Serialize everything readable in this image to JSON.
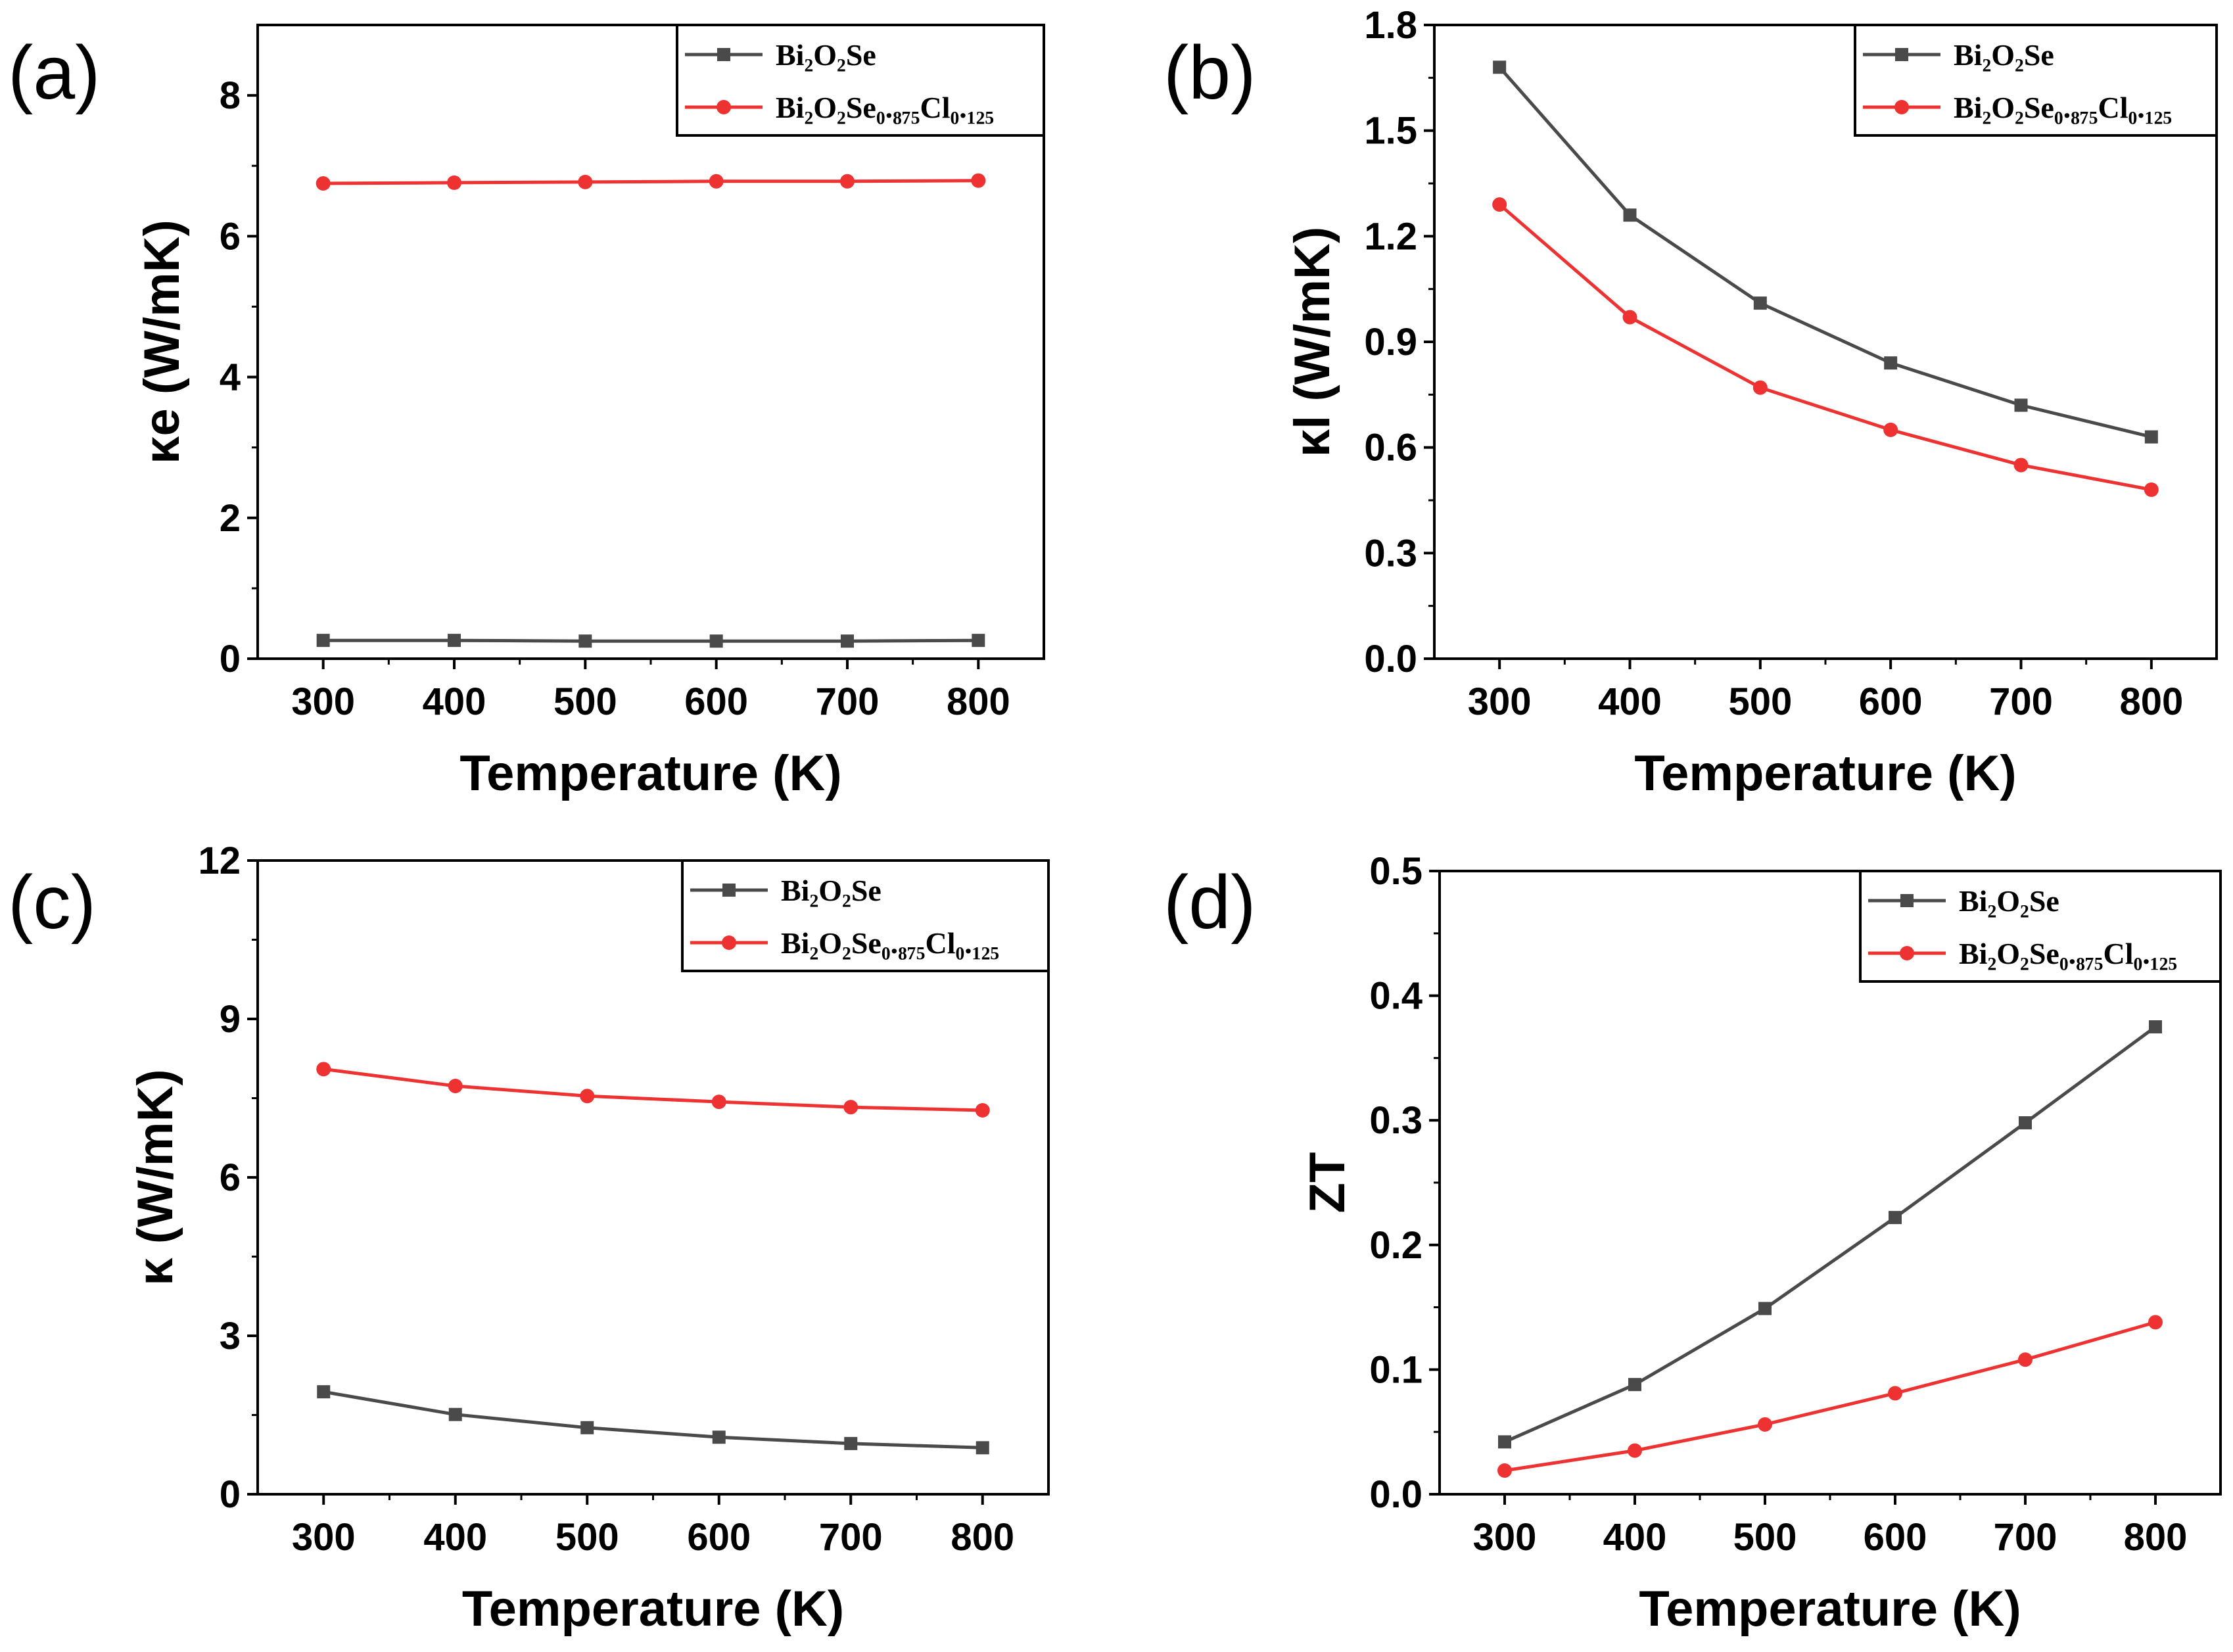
{
  "figure": {
    "panels": [
      "(a)",
      "(b)",
      "(c)",
      "(d)"
    ],
    "x_axis_title": "Temperature (K)"
  },
  "legend": {
    "series1": "Bi₂O₂Se",
    "series2": "Bi₂O₂Se₀.₈₇₅Cl₀.₁₂₅"
  },
  "colors": {
    "series1": "#4a4a4a",
    "series2": "#ee3232",
    "axis": "#000000"
  },
  "chart_data": [
    {
      "panel": "(a)",
      "type": "line",
      "xlabel": "Temperature (K)",
      "ylabel": "κe (W/mK)",
      "x": [
        300,
        400,
        500,
        600,
        700,
        800
      ],
      "xlim": [
        250,
        850
      ],
      "ylim": [
        0,
        9
      ],
      "xticks": [
        300,
        400,
        500,
        600,
        700,
        800
      ],
      "yticks": [
        0,
        2,
        4,
        6,
        8
      ],
      "ytick_labels": [
        "0",
        "2",
        "4",
        "6",
        "8"
      ],
      "legend_position": "top-right",
      "series": [
        {
          "name": "Bi₂O₂Se",
          "marker": "square",
          "color": "#4a4a4a",
          "values": [
            0.26,
            0.26,
            0.25,
            0.25,
            0.25,
            0.26
          ]
        },
        {
          "name": "Bi₂O₂Se₀.₈₇₅Cl₀.₁₂₅",
          "marker": "circle",
          "color": "#ee3232",
          "values": [
            6.75,
            6.76,
            6.77,
            6.78,
            6.78,
            6.79
          ]
        }
      ]
    },
    {
      "panel": "(b)",
      "type": "line",
      "xlabel": "Temperature (K)",
      "ylabel": "κl (W/mK)",
      "x": [
        300,
        400,
        500,
        600,
        700,
        800
      ],
      "xlim": [
        250,
        850
      ],
      "ylim": [
        0,
        1.8
      ],
      "xticks": [
        300,
        400,
        500,
        600,
        700,
        800
      ],
      "yticks": [
        0,
        0.3,
        0.6,
        0.9,
        1.2,
        1.5,
        1.8
      ],
      "ytick_labels": [
        "0.0",
        "0.3",
        "0.6",
        "0.9",
        "1.2",
        "1.5",
        "1.8"
      ],
      "legend_position": "top-right",
      "series": [
        {
          "name": "Bi₂O₂Se",
          "marker": "square",
          "color": "#4a4a4a",
          "values": [
            1.68,
            1.26,
            1.01,
            0.84,
            0.72,
            0.63
          ]
        },
        {
          "name": "Bi₂O₂Se₀.₈₇₅Cl₀.₁₂₅",
          "marker": "circle",
          "color": "#ee3232",
          "values": [
            1.29,
            0.97,
            0.77,
            0.65,
            0.55,
            0.48
          ]
        }
      ]
    },
    {
      "panel": "(c)",
      "type": "line",
      "xlabel": "Temperature (K)",
      "ylabel": "κ (W/mK)",
      "x": [
        300,
        400,
        500,
        600,
        700,
        800
      ],
      "xlim": [
        250,
        850
      ],
      "ylim": [
        0,
        12
      ],
      "xticks": [
        300,
        400,
        500,
        600,
        700,
        800
      ],
      "yticks": [
        0,
        3,
        6,
        9,
        12
      ],
      "ytick_labels": [
        "0",
        "3",
        "6",
        "9",
        "12"
      ],
      "legend_position": "top-right",
      "series": [
        {
          "name": "Bi₂O₂Se",
          "marker": "square",
          "color": "#4a4a4a",
          "values": [
            1.94,
            1.51,
            1.26,
            1.08,
            0.96,
            0.88
          ]
        },
        {
          "name": "Bi₂O₂Se₀.₈₇₅Cl₀.₁₂₅",
          "marker": "circle",
          "color": "#ee3232",
          "values": [
            8.05,
            7.73,
            7.54,
            7.43,
            7.33,
            7.27
          ]
        }
      ]
    },
    {
      "panel": "(d)",
      "type": "line",
      "xlabel": "Temperature (K)",
      "ylabel": "ZT",
      "x": [
        300,
        400,
        500,
        600,
        700,
        800
      ],
      "xlim": [
        250,
        850
      ],
      "ylim": [
        0,
        0.5
      ],
      "xticks": [
        300,
        400,
        500,
        600,
        700,
        800
      ],
      "yticks": [
        0,
        0.1,
        0.2,
        0.3,
        0.4,
        0.5
      ],
      "ytick_labels": [
        "0.0",
        "0.1",
        "0.2",
        "0.3",
        "0.4",
        "0.5"
      ],
      "legend_position": "top-right",
      "series": [
        {
          "name": "Bi₂O₂Se",
          "marker": "square",
          "color": "#4a4a4a",
          "values": [
            0.042,
            0.088,
            0.149,
            0.222,
            0.298,
            0.375
          ]
        },
        {
          "name": "Bi₂O₂Se₀.₈₇₅Cl₀.₁₂₅",
          "marker": "circle",
          "color": "#ee3232",
          "values": [
            0.019,
            0.035,
            0.056,
            0.081,
            0.108,
            0.138
          ]
        }
      ]
    }
  ]
}
